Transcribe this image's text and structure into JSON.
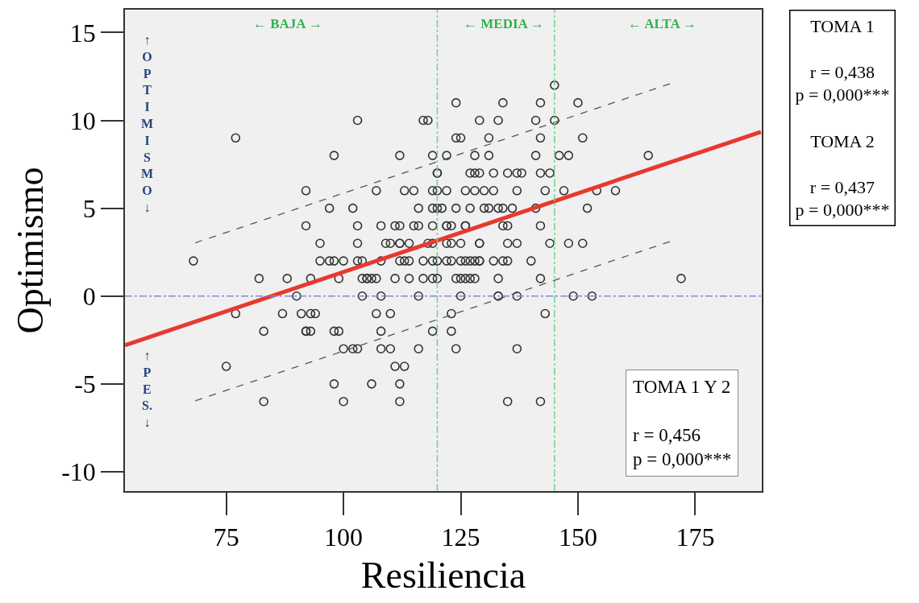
{
  "chart_data": {
    "type": "scatter",
    "xlabel": "Resiliencia",
    "ylabel": "Optimismo",
    "xlim": [
      53.4,
      189.2
    ],
    "ylim": [
      -11.1,
      16.3
    ],
    "xticks": [
      75,
      100,
      125,
      150,
      175
    ],
    "yticks": [
      -10,
      -5,
      0,
      5,
      10,
      15
    ],
    "grid": false,
    "legend": false,
    "series": [
      {
        "type": "scatter",
        "color": "#333333",
        "marker": "circle",
        "x": [
          145,
          124,
          134,
          142,
          150,
          103,
          117,
          118,
          129,
          133,
          141,
          145,
          77,
          124,
          125,
          131,
          142,
          151,
          98,
          112,
          119,
          122,
          128,
          131,
          141,
          146,
          148,
          165,
          120,
          120,
          127,
          128,
          129,
          132,
          135,
          137,
          138,
          142,
          144,
          92,
          107,
          113,
          115,
          119,
          120,
          122,
          126,
          128,
          130,
          132,
          137,
          143,
          147,
          154,
          158,
          97,
          102,
          116,
          119,
          120,
          121,
          124,
          127,
          130,
          131,
          133,
          134,
          136,
          141,
          152,
          92,
          103,
          108,
          111,
          112,
          115,
          116,
          119,
          122,
          122,
          123,
          126,
          126,
          134,
          135,
          142,
          95,
          103,
          109,
          110,
          112,
          112,
          114,
          118,
          119,
          122,
          123,
          125,
          129,
          129,
          135,
          137,
          144,
          148,
          151,
          68,
          95,
          97,
          98,
          100,
          103,
          104,
          108,
          112,
          113,
          114,
          117,
          119,
          120,
          122,
          123,
          125,
          126,
          127,
          128,
          129,
          129,
          132,
          134,
          135,
          140,
          82,
          88,
          93,
          99,
          104,
          105,
          105,
          106,
          107,
          111,
          114,
          117,
          119,
          120,
          124,
          125,
          126,
          127,
          128,
          133,
          142,
          172,
          90,
          104,
          108,
          116,
          125,
          133,
          133,
          137,
          149,
          153,
          77,
          87,
          91,
          93,
          94,
          107,
          110,
          123,
          143,
          83,
          92,
          92,
          93,
          98,
          99,
          108,
          119,
          123,
          100,
          102,
          103,
          108,
          110,
          116,
          124,
          137,
          75,
          111,
          113,
          98,
          106,
          112,
          83,
          100,
          112,
          135,
          142
        ],
        "values": [
          12,
          11,
          11,
          11,
          11,
          10,
          10,
          10,
          10,
          10,
          10,
          10,
          9,
          9,
          9,
          9,
          9,
          9,
          8,
          8,
          8,
          8,
          8,
          8,
          8,
          8,
          8,
          8,
          7,
          7,
          7,
          7,
          7,
          7,
          7,
          7,
          7,
          7,
          7,
          6,
          6,
          6,
          6,
          6,
          6,
          6,
          6,
          6,
          6,
          6,
          6,
          6,
          6,
          6,
          6,
          5,
          5,
          5,
          5,
          5,
          5,
          5,
          5,
          5,
          5,
          5,
          5,
          5,
          5,
          5,
          4,
          4,
          4,
          4,
          4,
          4,
          4,
          4,
          4,
          4,
          4,
          4,
          4,
          4,
          4,
          4,
          3,
          3,
          3,
          3,
          3,
          3,
          3,
          3,
          3,
          3,
          3,
          3,
          3,
          3,
          3,
          3,
          3,
          3,
          3,
          2,
          2,
          2,
          2,
          2,
          2,
          2,
          2,
          2,
          2,
          2,
          2,
          2,
          2,
          2,
          2,
          2,
          2,
          2,
          2,
          2,
          2,
          2,
          2,
          2,
          2,
          1,
          1,
          1,
          1,
          1,
          1,
          1,
          1,
          1,
          1,
          1,
          1,
          1,
          1,
          1,
          1,
          1,
          1,
          1,
          1,
          1,
          1,
          0,
          0,
          0,
          0,
          0,
          0,
          0,
          0,
          0,
          0,
          -1,
          -1,
          -1,
          -1,
          -1,
          -1,
          -1,
          -1,
          -1,
          -2,
          -2,
          -2,
          -2,
          -2,
          -2,
          -2,
          -2,
          -2,
          -3,
          -3,
          -3,
          -3,
          -3,
          -3,
          -3,
          -3,
          -4,
          -4,
          -4,
          -5,
          -5,
          -5,
          -6,
          -6,
          -6,
          -6,
          -6
        ]
      },
      {
        "type": "line",
        "color": "#e8392e",
        "line_style": "solid",
        "x": [
          53.4,
          189
        ],
        "values": [
          -2.8,
          9.34
        ]
      },
      {
        "type": "line",
        "color": "#555555",
        "line_style": "dashed",
        "x": [
          68.4,
          169.8
        ],
        "values": [
          3.03,
          12.1
        ]
      },
      {
        "type": "line",
        "color": "#555555",
        "line_style": "dashed",
        "x": [
          68.4,
          169.8
        ],
        "values": [
          -5.96,
          3.12
        ]
      }
    ],
    "ref_lines": [
      {
        "axis": "y",
        "value": 0,
        "label": null,
        "color": "#7b86f2",
        "line_style": "dashdot"
      },
      {
        "axis": "x",
        "value": 120,
        "label": null,
        "color": "#6fd38a",
        "line_style": "dashdot"
      },
      {
        "axis": "x",
        "value": 145,
        "label": null,
        "color": "#6fd38a",
        "line_style": "dashdot"
      }
    ],
    "annotations": [
      "← BAJA →",
      "← MEDIA →",
      "← ALTA →",
      "↑\nO\nP\nT\nI\nM\nI\nS\nM\nO\n↓",
      "↑\nP\nE\nS.\n↓",
      "TOMA 1 Y 2\n\nr = 0,456\np = 0,000***",
      "TOMA 1\n\nr = 0,438\np = 0,000***\n\nTOMA 2\n\nr = 0,437\np = 0,000***"
    ]
  }
}
